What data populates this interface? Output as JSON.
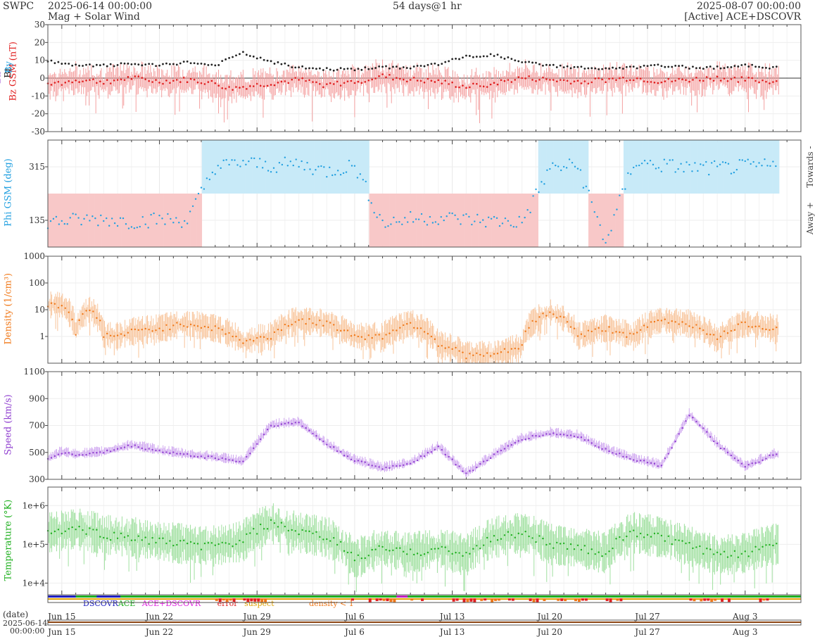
{
  "header": {
    "org": "SWPC",
    "start": "2025-06-14 00:00:00",
    "product": "Mag + Solar Wind",
    "span": "54 days@1 hr",
    "end": "2025-08-07 00:00:00",
    "source": "[Active] ACE+DSCOVR"
  },
  "bottom": {
    "date_label": "(date)",
    "start_date": "2025-06-14",
    "start_time": "00:00:00"
  },
  "legend": {
    "dscovr": "DSCOVR",
    "ace": "ACE",
    "both": "ACE+DSCOVR",
    "error": "error",
    "suspect": "suspect",
    "density": "density < 1"
  },
  "colors": {
    "bt": "#222222",
    "bz": "#e02020",
    "bz_fill": "#f4a0a0",
    "phi": "#22a0e0",
    "phi_fill_towards": "#c8eaf8",
    "phi_fill_away": "#f8c8c8",
    "density": "#f07818",
    "density_fill": "#f8c49a",
    "speed": "#9040d0",
    "speed_fill": "#d0a8f0",
    "temp": "#20b020",
    "temp_fill": "#a0e0a0"
  },
  "chart_data": [
    {
      "type": "line",
      "name": "mag",
      "ylabel_bt": "Bt",
      "ylabel_bz": "Bz GSM (nT)",
      "label_by": "By",
      "label_bx": "Bx",
      "ylim": [
        -30,
        30
      ],
      "yticks": [
        -30,
        -20,
        -10,
        0,
        10,
        20,
        30
      ],
      "series": [
        {
          "name": "Bt",
          "x": [
            0,
            1,
            2,
            4,
            6,
            8,
            10,
            12,
            13,
            14,
            16,
            18,
            20,
            22,
            24,
            26,
            28,
            30,
            32,
            34,
            36,
            38,
            40,
            42,
            44,
            46,
            48,
            50,
            52,
            54
          ],
          "values": [
            10,
            8,
            7,
            7,
            8,
            7,
            9,
            7,
            11,
            14,
            9,
            6,
            5,
            5,
            6,
            6,
            8,
            12,
            13,
            9,
            7,
            6,
            5,
            6,
            7,
            6,
            6,
            7,
            6,
            6
          ]
        },
        {
          "name": "Bz",
          "x": [
            0,
            1,
            2,
            4,
            6,
            8,
            10,
            12,
            13,
            14,
            16,
            18,
            20,
            22,
            24,
            26,
            28,
            30,
            32,
            34,
            36,
            38,
            40,
            42,
            44,
            46,
            48,
            50,
            52,
            54
          ],
          "values": [
            -2,
            -3,
            -1,
            -2,
            0,
            -2,
            -1,
            -3,
            -6,
            -5,
            -3,
            -1,
            -4,
            -2,
            1,
            -1,
            -2,
            -5,
            -3,
            0,
            -1,
            -2,
            -1,
            0,
            -2,
            -1,
            0,
            -1,
            -2,
            -1
          ]
        }
      ]
    },
    {
      "type": "scatter",
      "name": "phi",
      "ylabel": "Phi GSM (deg)",
      "label_towards": "Towards -",
      "label_away": "Away +",
      "ylim": [
        45,
        405
      ],
      "yticks": [
        135,
        315
      ],
      "series": [
        {
          "name": "Phi",
          "x": [
            0,
            2,
            4,
            6,
            8,
            10,
            12,
            13,
            14,
            16,
            18,
            20,
            22,
            24,
            26,
            28,
            30,
            32,
            34,
            36,
            38,
            40,
            42,
            44,
            46,
            48,
            50,
            52,
            54
          ],
          "values": [
            130,
            135,
            140,
            130,
            138,
            135,
            315,
            320,
            330,
            318,
            325,
            300,
            320,
            125,
            140,
            145,
            138,
            132,
            128,
            310,
            320,
            60,
            330,
            320,
            312,
            310,
            315,
            318,
            315
          ]
        }
      ]
    },
    {
      "type": "line",
      "name": "density",
      "ylabel": "Density (1/cm³)",
      "yscale": "log",
      "ylim": [
        0.1,
        1000
      ],
      "yticks": [
        1,
        10,
        100,
        1000
      ],
      "series": [
        {
          "name": "Density",
          "x": [
            0,
            1,
            2,
            3,
            4,
            5,
            6,
            8,
            10,
            12,
            14,
            16,
            18,
            20,
            22,
            24,
            26,
            28,
            30,
            32,
            34,
            36,
            38,
            40,
            42,
            44,
            46,
            48,
            50,
            52,
            54
          ],
          "values": [
            15,
            15,
            1.5,
            10,
            1.2,
            1,
            1.5,
            2,
            3,
            2,
            0.6,
            1,
            4,
            3,
            1,
            1,
            3,
            0.5,
            0.2,
            0.2,
            0.4,
            8,
            1,
            2,
            1,
            4,
            3,
            0.7,
            3,
            2,
            2
          ]
        }
      ]
    },
    {
      "type": "line",
      "name": "speed",
      "ylabel": "Speed (km/s)",
      "ylim": [
        300,
        1100
      ],
      "yticks": [
        300,
        500,
        700,
        900,
        1100
      ],
      "series": [
        {
          "name": "Speed",
          "x": [
            0,
            1,
            2,
            4,
            6,
            8,
            10,
            12,
            14,
            16,
            18,
            20,
            22,
            24,
            26,
            28,
            30,
            32,
            34,
            36,
            38,
            40,
            42,
            44,
            46,
            48,
            50,
            52,
            54
          ],
          "values": [
            450,
            500,
            480,
            500,
            550,
            510,
            480,
            460,
            430,
            700,
            720,
            560,
            440,
            380,
            420,
            540,
            340,
            480,
            600,
            640,
            620,
            520,
            450,
            400,
            780,
            560,
            390,
            480,
            480
          ]
        }
      ]
    },
    {
      "type": "line",
      "name": "temperature",
      "ylabel": "Temperature (°K)",
      "yscale": "log",
      "ylim": [
        5000,
        3000000
      ],
      "yticks": [
        10000,
        100000,
        1000000
      ],
      "ytick_labels": [
        "1e+4",
        "1e+5",
        "1e+6"
      ],
      "series": [
        {
          "name": "Temperature",
          "x": [
            0,
            2,
            4,
            6,
            8,
            10,
            12,
            14,
            16,
            18,
            20,
            22,
            24,
            26,
            28,
            30,
            32,
            34,
            36,
            38,
            40,
            42,
            44,
            46,
            48,
            50,
            52,
            54
          ],
          "values": [
            200000,
            250000,
            180000,
            150000,
            120000,
            100000,
            90000,
            120000,
            350000,
            200000,
            150000,
            40000,
            80000,
            60000,
            80000,
            50000,
            150000,
            200000,
            100000,
            80000,
            60000,
            200000,
            150000,
            90000,
            50000,
            60000,
            100000,
            100000
          ]
        }
      ]
    },
    {
      "type": "bar",
      "name": "source-strip",
      "xlabels": [
        "Jun 15",
        "Jun 22",
        "Jun 29",
        "Jul 6",
        "Jul 13",
        "Jul 20",
        "Jul 27",
        "Aug 3"
      ],
      "xlabel_days": [
        1,
        8,
        15,
        22,
        29,
        36,
        43,
        50
      ]
    }
  ]
}
